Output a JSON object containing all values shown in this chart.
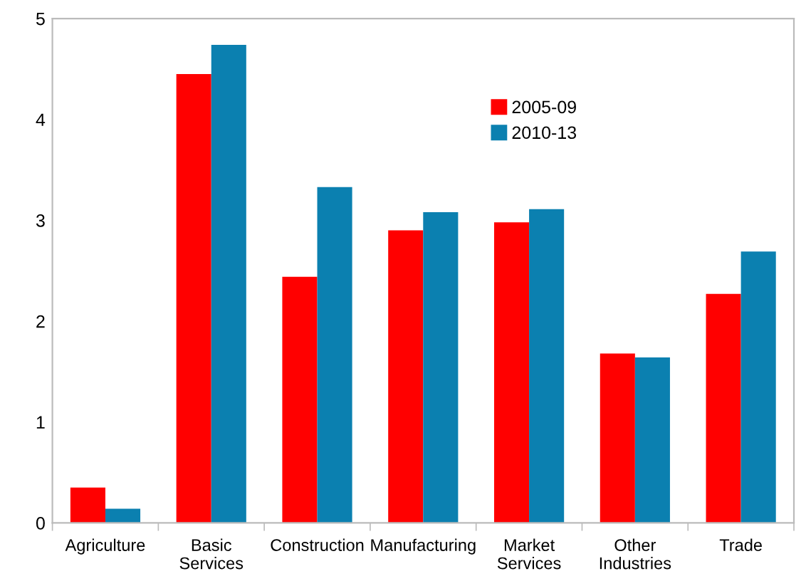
{
  "chart_data": {
    "type": "bar",
    "categories": [
      "Agriculture",
      "Basic\nServices",
      "Construction",
      "Manufacturing",
      "Market\nServices",
      "Other\nIndustries",
      "Trade"
    ],
    "series": [
      {
        "name": "2005-09",
        "color": "#ff0000",
        "values": [
          0.35,
          4.45,
          2.44,
          2.9,
          2.98,
          1.68,
          2.27
        ]
      },
      {
        "name": "2010-13",
        "color": "#0b80b0",
        "values": [
          0.14,
          4.74,
          3.33,
          3.08,
          3.11,
          1.64,
          2.69
        ]
      }
    ],
    "ylim": [
      0,
      5
    ],
    "yticks": [
      0,
      1,
      2,
      3,
      4,
      5
    ],
    "grid": false,
    "legend": "top"
  }
}
